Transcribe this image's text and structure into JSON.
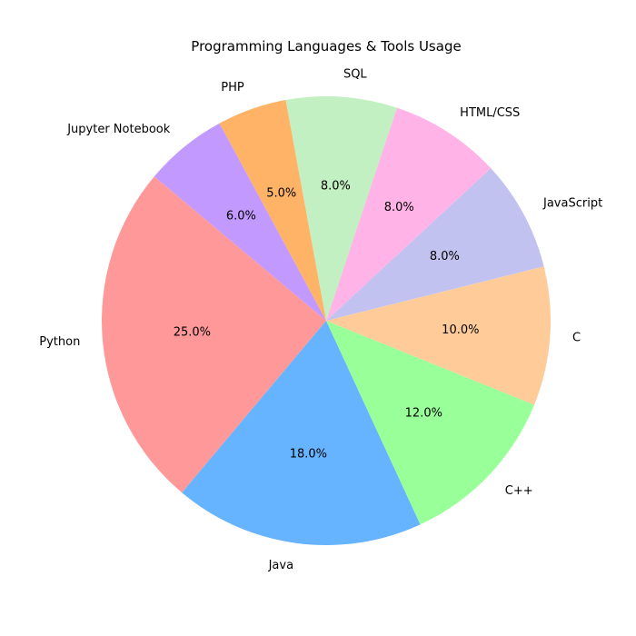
{
  "chart_data": {
    "type": "pie",
    "title": "Programming Languages & Tools Usage",
    "categories": [
      "Python",
      "Java",
      "C++",
      "C",
      "JavaScript",
      "HTML/CSS",
      "SQL",
      "PHP",
      "Jupyter Notebook"
    ],
    "values": [
      25.0,
      18.0,
      12.0,
      10.0,
      8.0,
      8.0,
      8.0,
      5.0,
      6.0
    ],
    "percent_labels": [
      "25.0%",
      "18.0%",
      "12.0%",
      "10.0%",
      "8.0%",
      "8.0%",
      "8.0%",
      "5.0%",
      "6.0%"
    ],
    "colors": [
      "#ff9999",
      "#66b3ff",
      "#99ff99",
      "#ffcc99",
      "#c2c2f0",
      "#ffb3e6",
      "#c2f0c2",
      "#ffb366",
      "#c299ff"
    ],
    "start_angle_degrees": 140,
    "direction": "counterclockwise",
    "legend": "none"
  }
}
